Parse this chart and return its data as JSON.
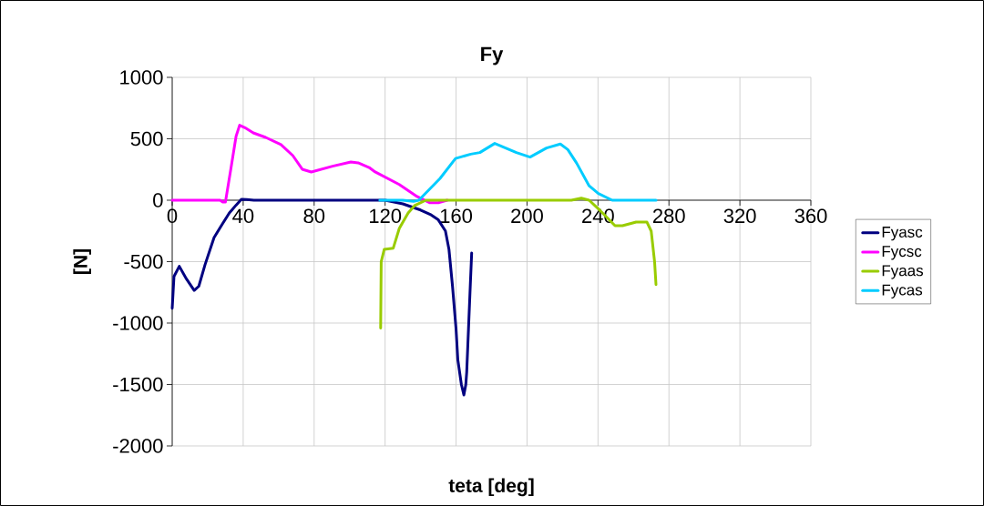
{
  "chart_data": {
    "type": "line",
    "title": "Fy",
    "xlabel": "teta [deg]",
    "ylabel": "[N]",
    "xlim": [
      0,
      360
    ],
    "ylim": [
      -2000,
      1000
    ],
    "xticks": [
      0,
      40,
      80,
      120,
      160,
      200,
      240,
      280,
      320,
      360
    ],
    "yticks": [
      -2000,
      -1500,
      -1000,
      -500,
      0,
      500,
      1000
    ],
    "grid": true,
    "legend": "right",
    "marker": "none",
    "line_style": "solid",
    "series": [
      {
        "name": "Fyasc",
        "color": "#000080",
        "x": [
          0,
          1,
          4,
          8,
          12.4,
          15,
          18.5,
          23.6,
          28,
          32.2,
          36,
          39,
          42,
          46,
          80,
          120,
          130,
          140,
          146,
          150,
          154,
          156,
          158,
          160,
          161,
          162,
          163,
          164.4,
          165.5,
          166,
          167,
          168,
          168.8
        ],
        "values": [
          -880,
          -620,
          -538,
          -640,
          -734,
          -700,
          -525,
          -304,
          -200,
          -104,
          -40,
          7,
          5,
          0,
          0,
          0,
          -30,
          -80,
          -120,
          -160,
          -250,
          -400,
          -700,
          -1050,
          -1300,
          -1400,
          -1500,
          -1585,
          -1500,
          -1400,
          -1050,
          -700,
          -430
        ]
      },
      {
        "name": "Fycsc",
        "color": "#ff00ff",
        "x": [
          0,
          27,
          28.5,
          30,
          33,
          36,
          38,
          41,
          45.7,
          52.7,
          61.3,
          68,
          73.3,
          78.4,
          90.4,
          100.7,
          104.8,
          111,
          114.4,
          128,
          138,
          145,
          150,
          155
        ],
        "values": [
          0,
          0,
          -15,
          -15,
          250,
          520,
          610,
          590,
          548,
          511,
          452,
          363,
          252,
          230,
          277,
          311,
          304,
          266,
          230,
          128,
          30,
          -20,
          -20,
          0
        ]
      },
      {
        "name": "Fyaas",
        "color": "#99cc00",
        "x": [
          117.5,
          117.8,
          119.5,
          124.6,
          128,
          133,
          136.6,
          143,
          200,
          225,
          230.6,
          235,
          241,
          249.6,
          253.8,
          261.5,
          267.6,
          270,
          271.9,
          272.7
        ],
        "values": [
          -1040,
          -501,
          -400,
          -390,
          -230,
          -104,
          -44,
          0,
          0,
          0,
          17,
          0,
          -81,
          -208,
          -208,
          -178,
          -178,
          -252,
          -501,
          -687
        ]
      },
      {
        "name": "Fycas",
        "color": "#00ccff",
        "x": [
          117,
          130,
          136,
          139,
          151,
          159.7,
          168.3,
          173.4,
          181.8,
          194,
          201.7,
          211,
          218.8,
          223,
          228,
          235,
          240.2,
          248,
          272.7
        ],
        "values": [
          0,
          0,
          -10,
          0,
          178,
          340,
          375,
          388,
          462,
          388,
          351,
          425,
          457,
          412,
          301,
          117,
          54,
          0,
          0
        ]
      }
    ]
  }
}
